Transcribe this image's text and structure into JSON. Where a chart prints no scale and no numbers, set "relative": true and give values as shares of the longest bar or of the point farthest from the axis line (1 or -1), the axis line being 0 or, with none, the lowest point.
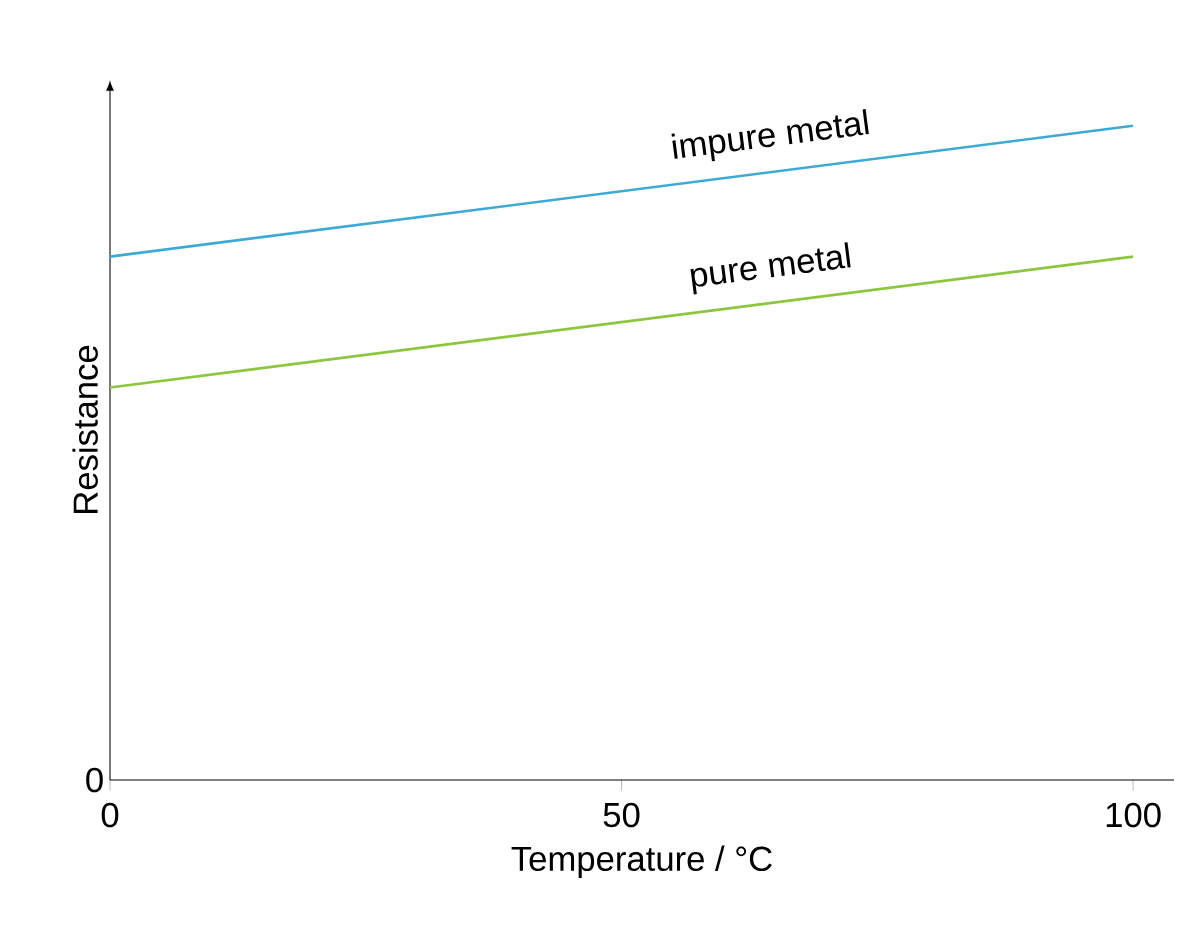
{
  "chart_data": {
    "type": "line",
    "relative": true,
    "xlabel": "Temperature  / °C",
    "ylabel": "Resistance",
    "xlim": [
      0,
      104
    ],
    "xticks": [
      0,
      50,
      100
    ],
    "x": [
      0,
      100
    ],
    "series": [
      {
        "name": "impure metal",
        "color": "#3fa9d6",
        "values": [
          0.8,
          1.0
        ]
      },
      {
        "name": "pure metal",
        "color": "#8cc63f",
        "values": [
          0.6,
          0.8
        ]
      }
    ],
    "annotations": [
      "0"
    ]
  }
}
